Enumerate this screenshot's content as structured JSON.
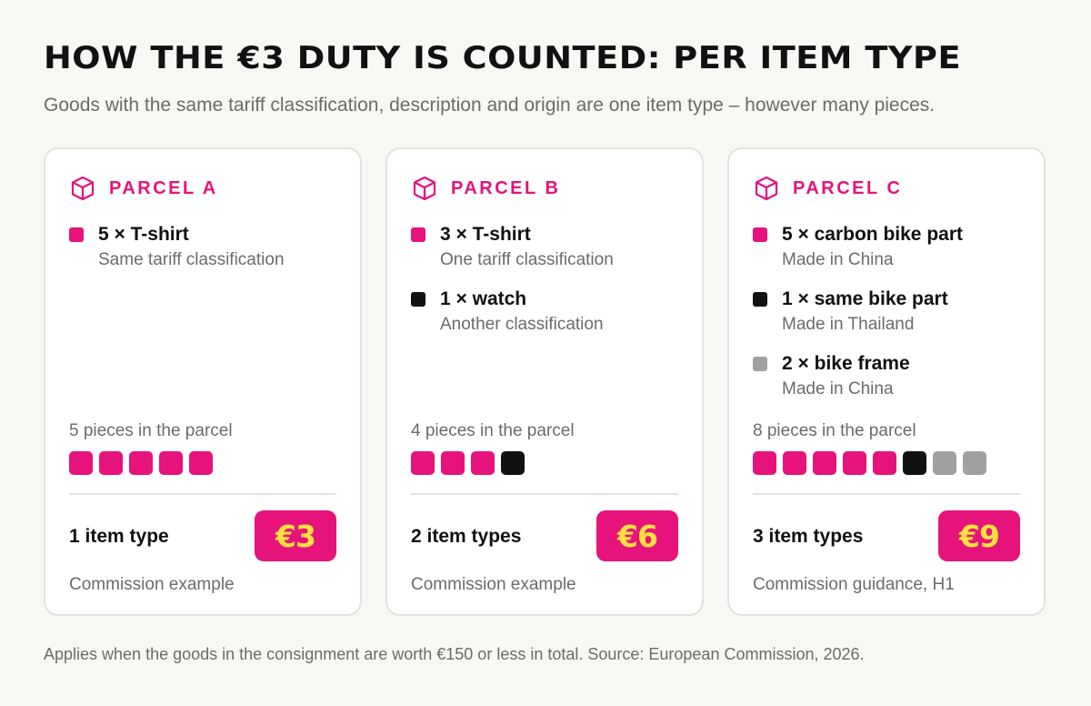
{
  "title": "HOW THE €3 DUTY IS COUNTED: PER ITEM TYPE",
  "subtitle": "Goods with the same tariff classification, description and origin are one item type – however many pieces.",
  "colors": {
    "accent": "#e5137b",
    "dark": "#111111",
    "grey": "#a0a0a0",
    "badge_text": "#ffe03d",
    "background": "#f8f7f4",
    "card_border": "#e4e2dd"
  },
  "parcels": [
    {
      "title": "PARCEL A",
      "icon": "package-box-icon",
      "items": [
        {
          "label": "5 × T-shirt",
          "desc": "Same tariff classification",
          "color": "#e5137b"
        }
      ],
      "pieces_label": "5 pieces in the parcel",
      "pieces": [
        "#e5137b",
        "#e5137b",
        "#e5137b",
        "#e5137b",
        "#e5137b"
      ],
      "types_label": "1 item type",
      "price": "€3",
      "note": "Commission example"
    },
    {
      "title": "PARCEL B",
      "icon": "package-box-icon",
      "items": [
        {
          "label": "3 × T-shirt",
          "desc": "One tariff classification",
          "color": "#e5137b"
        },
        {
          "label": "1 × watch",
          "desc": "Another classification",
          "color": "#111111"
        }
      ],
      "pieces_label": "4 pieces in the parcel",
      "pieces": [
        "#e5137b",
        "#e5137b",
        "#e5137b",
        "#111111"
      ],
      "types_label": "2 item types",
      "price": "€6",
      "note": "Commission example"
    },
    {
      "title": "PARCEL C",
      "icon": "package-box-icon",
      "items": [
        {
          "label": "5 × carbon bike part",
          "desc": "Made in China",
          "color": "#e5137b"
        },
        {
          "label": "1 × same bike part",
          "desc": "Made in Thailand",
          "color": "#111111"
        },
        {
          "label": "2 × bike frame",
          "desc": "Made in China",
          "color": "#a0a0a0"
        }
      ],
      "pieces_label": "8 pieces in the parcel",
      "pieces": [
        "#e5137b",
        "#e5137b",
        "#e5137b",
        "#e5137b",
        "#e5137b",
        "#111111",
        "#a0a0a0",
        "#a0a0a0"
      ],
      "types_label": "3 item types",
      "price": "€9",
      "note": "Commission guidance, H1"
    }
  ],
  "footnote": "Applies when the goods in the consignment are worth €150 or less in total. Source: European Commission, 2026."
}
